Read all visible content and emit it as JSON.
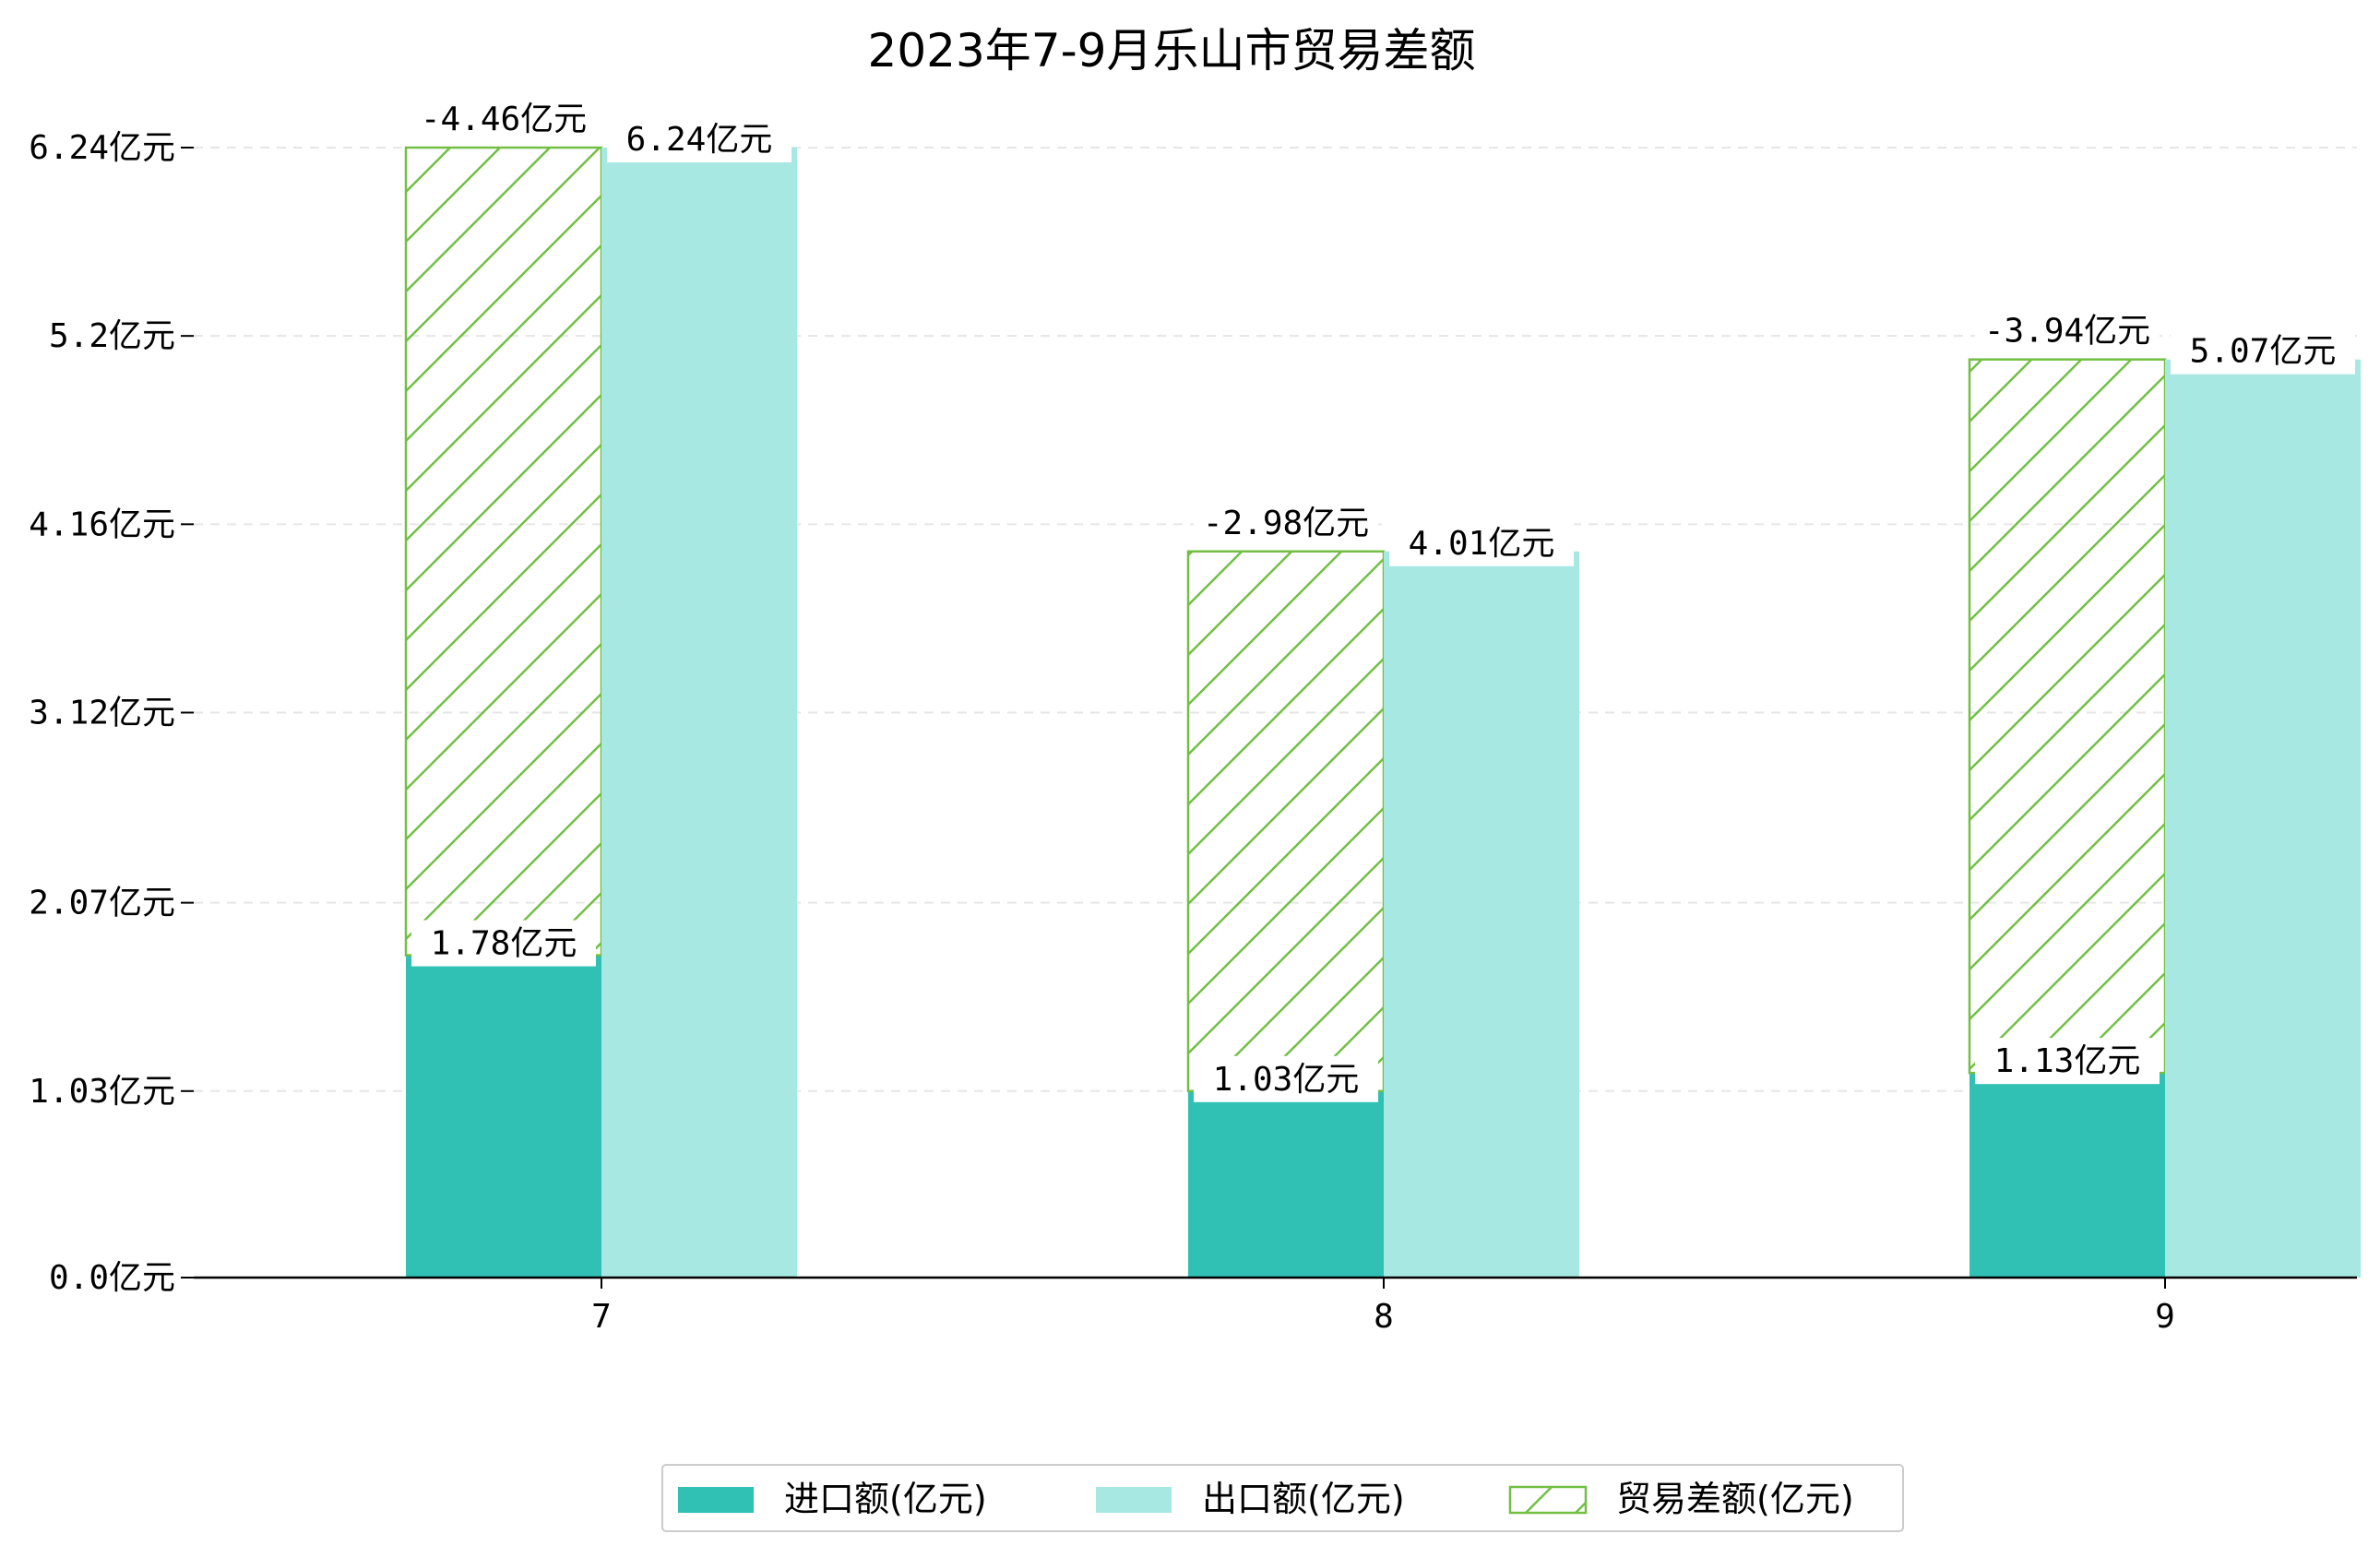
{
  "chart_data": {
    "type": "bar",
    "title": "2023年7-9月乐山市贸易差额",
    "categories": [
      "7",
      "8",
      "9"
    ],
    "series": [
      {
        "name": "进口额(亿元)",
        "values": [
          1.78,
          1.03,
          1.13
        ],
        "labels": [
          "1.78亿元",
          "1.03亿元",
          "1.13亿元"
        ],
        "color": "#30c0b4",
        "style": "solid"
      },
      {
        "name": "出口额(亿元)",
        "values": [
          6.24,
          4.01,
          5.07
        ],
        "labels": [
          "6.24亿元",
          "4.01亿元",
          "5.07亿元"
        ],
        "color": "#a8e8e2",
        "style": "solid"
      },
      {
        "name": "贸易差额(亿元)",
        "values": [
          -4.46,
          -2.98,
          -3.94
        ],
        "labels": [
          "-4.46亿元",
          "-2.98亿元",
          "-3.94亿元"
        ],
        "color": "#72bf44",
        "style": "hatched",
        "stacked_on": "进口额(亿元)"
      }
    ],
    "yticks": [
      0.0,
      1.03,
      2.07,
      3.12,
      4.16,
      5.2,
      6.24
    ],
    "ytick_labels": [
      "0.0亿元",
      "1.03亿元",
      "2.07亿元",
      "3.12亿元",
      "4.16亿元",
      "5.2亿元",
      "6.24亿元"
    ],
    "ylim": [
      0,
      6.24
    ],
    "xlabel": "",
    "ylabel": "",
    "grid": "horizontal-dashed",
    "legend_position": "bottom-center",
    "colors": {
      "axis": "#000000",
      "grid": "#e6e6e6",
      "hatch": "#72bf44",
      "label_bg": "#ffffff"
    }
  }
}
